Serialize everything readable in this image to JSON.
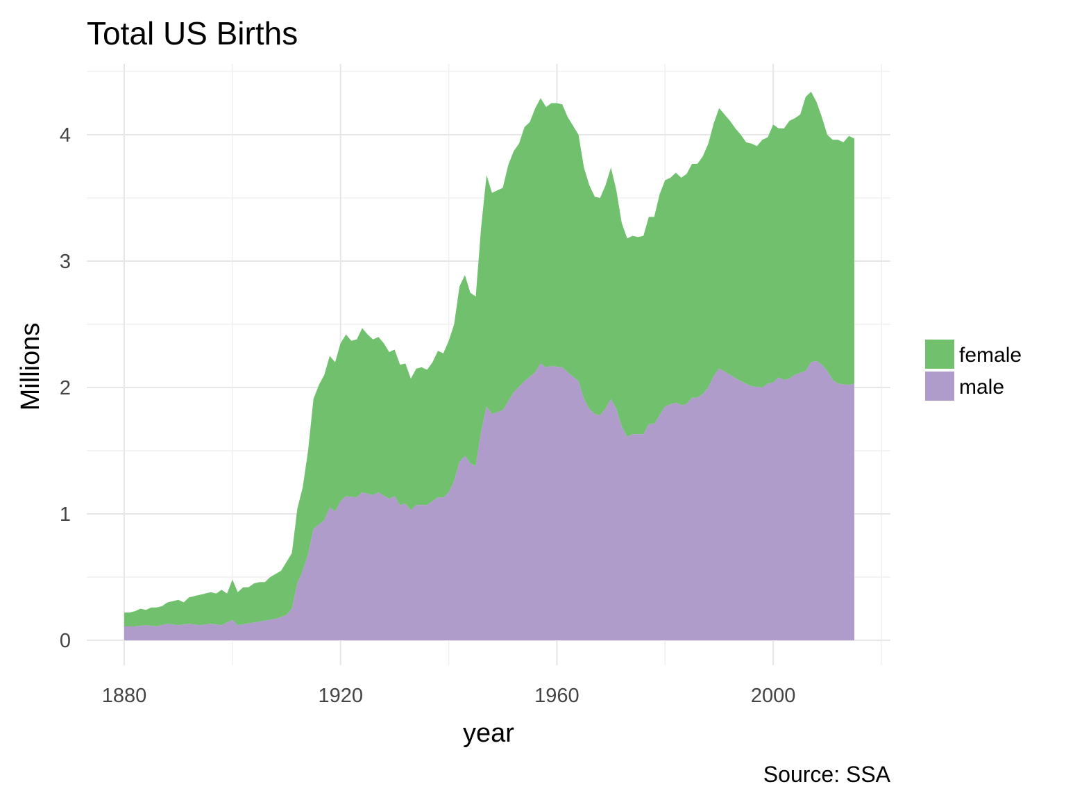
{
  "chart_data": {
    "type": "area",
    "stacked": true,
    "title": "Total US Births",
    "xlabel": "year",
    "ylabel": "Millions",
    "caption": "Source: SSA",
    "xlim": [
      1880,
      2015
    ],
    "ylim": [
      0,
      4.4
    ],
    "x_ticks": [
      1880,
      1920,
      1960,
      2000
    ],
    "y_ticks": [
      0,
      1,
      2,
      3,
      4
    ],
    "grid": true,
    "legend": "right",
    "stack_order": [
      "male",
      "female"
    ],
    "series": [
      {
        "name": "male",
        "color": "#af9ccb",
        "points": [
          [
            1880,
            0.11
          ],
          [
            1882,
            0.11
          ],
          [
            1884,
            0.12
          ],
          [
            1886,
            0.11
          ],
          [
            1888,
            0.13
          ],
          [
            1890,
            0.12
          ],
          [
            1892,
            0.13
          ],
          [
            1894,
            0.12
          ],
          [
            1896,
            0.13
          ],
          [
            1898,
            0.12
          ],
          [
            1900,
            0.16
          ],
          [
            1901,
            0.12
          ],
          [
            1904,
            0.14
          ],
          [
            1908,
            0.17
          ],
          [
            1910,
            0.2
          ],
          [
            1911,
            0.25
          ],
          [
            1912,
            0.45
          ],
          [
            1913,
            0.55
          ],
          [
            1914,
            0.68
          ],
          [
            1915,
            0.88
          ],
          [
            1917,
            0.95
          ],
          [
            1918,
            1.05
          ],
          [
            1919,
            1.02
          ],
          [
            1920,
            1.1
          ],
          [
            1921,
            1.14
          ],
          [
            1923,
            1.13
          ],
          [
            1924,
            1.17
          ],
          [
            1926,
            1.15
          ],
          [
            1927,
            1.17
          ],
          [
            1929,
            1.12
          ],
          [
            1930,
            1.14
          ],
          [
            1931,
            1.07
          ],
          [
            1932,
            1.08
          ],
          [
            1933,
            1.03
          ],
          [
            1934,
            1.07
          ],
          [
            1936,
            1.07
          ],
          [
            1938,
            1.13
          ],
          [
            1939,
            1.13
          ],
          [
            1940,
            1.17
          ],
          [
            1941,
            1.26
          ],
          [
            1942,
            1.41
          ],
          [
            1943,
            1.46
          ],
          [
            1944,
            1.4
          ],
          [
            1945,
            1.38
          ],
          [
            1946,
            1.65
          ],
          [
            1947,
            1.85
          ],
          [
            1948,
            1.79
          ],
          [
            1950,
            1.82
          ],
          [
            1952,
            1.96
          ],
          [
            1954,
            2.05
          ],
          [
            1956,
            2.12
          ],
          [
            1957,
            2.19
          ],
          [
            1958,
            2.16
          ],
          [
            1959,
            2.17
          ],
          [
            1961,
            2.16
          ],
          [
            1962,
            2.12
          ],
          [
            1964,
            2.05
          ],
          [
            1965,
            1.91
          ],
          [
            1966,
            1.83
          ],
          [
            1967,
            1.79
          ],
          [
            1968,
            1.78
          ],
          [
            1969,
            1.83
          ],
          [
            1970,
            1.91
          ],
          [
            1971,
            1.83
          ],
          [
            1972,
            1.69
          ],
          [
            1973,
            1.61
          ],
          [
            1974,
            1.63
          ],
          [
            1975,
            1.63
          ],
          [
            1976,
            1.63
          ],
          [
            1977,
            1.71
          ],
          [
            1978,
            1.71
          ],
          [
            1980,
            1.85
          ],
          [
            1982,
            1.88
          ],
          [
            1983,
            1.86
          ],
          [
            1984,
            1.87
          ],
          [
            1985,
            1.92
          ],
          [
            1986,
            1.92
          ],
          [
            1987,
            1.95
          ],
          [
            1988,
            2.0
          ],
          [
            1989,
            2.09
          ],
          [
            1990,
            2.15
          ],
          [
            1992,
            2.1
          ],
          [
            1994,
            2.05
          ],
          [
            1996,
            2.01
          ],
          [
            1998,
            2.0
          ],
          [
            1999,
            2.03
          ],
          [
            2000,
            2.04
          ],
          [
            2001,
            2.08
          ],
          [
            2002,
            2.06
          ],
          [
            2003,
            2.07
          ],
          [
            2004,
            2.1
          ],
          [
            2006,
            2.13
          ],
          [
            2007,
            2.2
          ],
          [
            2008,
            2.21
          ],
          [
            2009,
            2.18
          ],
          [
            2010,
            2.13
          ],
          [
            2011,
            2.06
          ],
          [
            2012,
            2.03
          ],
          [
            2014,
            2.02
          ],
          [
            2015,
            2.03
          ]
        ]
      },
      {
        "name": "female",
        "color": "#70c06e",
        "points": [
          [
            1880,
            0.22
          ],
          [
            1881,
            0.22
          ],
          [
            1882,
            0.23
          ],
          [
            1883,
            0.25
          ],
          [
            1884,
            0.24
          ],
          [
            1885,
            0.26
          ],
          [
            1886,
            0.26
          ],
          [
            1887,
            0.27
          ],
          [
            1888,
            0.3
          ],
          [
            1889,
            0.31
          ],
          [
            1890,
            0.32
          ],
          [
            1891,
            0.3
          ],
          [
            1892,
            0.34
          ],
          [
            1894,
            0.36
          ],
          [
            1896,
            0.38
          ],
          [
            1897,
            0.37
          ],
          [
            1898,
            0.4
          ],
          [
            1899,
            0.37
          ],
          [
            1900,
            0.48
          ],
          [
            1901,
            0.38
          ],
          [
            1902,
            0.42
          ],
          [
            1903,
            0.42
          ],
          [
            1904,
            0.45
          ],
          [
            1905,
            0.46
          ],
          [
            1906,
            0.46
          ],
          [
            1907,
            0.5
          ],
          [
            1909,
            0.55
          ],
          [
            1910,
            0.62
          ],
          [
            1911,
            0.69
          ],
          [
            1912,
            1.04
          ],
          [
            1913,
            1.21
          ],
          [
            1914,
            1.5
          ],
          [
            1915,
            1.91
          ],
          [
            1916,
            2.02
          ],
          [
            1917,
            2.1
          ],
          [
            1918,
            2.25
          ],
          [
            1919,
            2.2
          ],
          [
            1920,
            2.35
          ],
          [
            1921,
            2.42
          ],
          [
            1922,
            2.37
          ],
          [
            1923,
            2.38
          ],
          [
            1924,
            2.47
          ],
          [
            1925,
            2.42
          ],
          [
            1926,
            2.38
          ],
          [
            1927,
            2.4
          ],
          [
            1928,
            2.35
          ],
          [
            1929,
            2.28
          ],
          [
            1930,
            2.3
          ],
          [
            1931,
            2.18
          ],
          [
            1932,
            2.19
          ],
          [
            1933,
            2.07
          ],
          [
            1934,
            2.15
          ],
          [
            1935,
            2.16
          ],
          [
            1936,
            2.14
          ],
          [
            1937,
            2.2
          ],
          [
            1938,
            2.29
          ],
          [
            1939,
            2.27
          ],
          [
            1940,
            2.37
          ],
          [
            1941,
            2.5
          ],
          [
            1942,
            2.8
          ],
          [
            1943,
            2.89
          ],
          [
            1944,
            2.75
          ],
          [
            1945,
            2.72
          ],
          [
            1946,
            3.27
          ],
          [
            1947,
            3.68
          ],
          [
            1948,
            3.54
          ],
          [
            1950,
            3.58
          ],
          [
            1951,
            3.76
          ],
          [
            1952,
            3.87
          ],
          [
            1953,
            3.93
          ],
          [
            1954,
            4.06
          ],
          [
            1955,
            4.1
          ],
          [
            1956,
            4.21
          ],
          [
            1957,
            4.29
          ],
          [
            1958,
            4.22
          ],
          [
            1959,
            4.25
          ],
          [
            1960,
            4.25
          ],
          [
            1961,
            4.24
          ],
          [
            1962,
            4.14
          ],
          [
            1963,
            4.07
          ],
          [
            1964,
            4.0
          ],
          [
            1965,
            3.74
          ],
          [
            1966,
            3.6
          ],
          [
            1967,
            3.51
          ],
          [
            1968,
            3.5
          ],
          [
            1969,
            3.6
          ],
          [
            1970,
            3.74
          ],
          [
            1971,
            3.56
          ],
          [
            1972,
            3.3
          ],
          [
            1973,
            3.18
          ],
          [
            1974,
            3.2
          ],
          [
            1975,
            3.19
          ],
          [
            1976,
            3.2
          ],
          [
            1977,
            3.35
          ],
          [
            1978,
            3.35
          ],
          [
            1979,
            3.53
          ],
          [
            1980,
            3.64
          ],
          [
            1981,
            3.66
          ],
          [
            1982,
            3.7
          ],
          [
            1983,
            3.66
          ],
          [
            1984,
            3.69
          ],
          [
            1985,
            3.77
          ],
          [
            1986,
            3.77
          ],
          [
            1987,
            3.83
          ],
          [
            1988,
            3.93
          ],
          [
            1989,
            4.09
          ],
          [
            1990,
            4.21
          ],
          [
            1991,
            4.16
          ],
          [
            1992,
            4.11
          ],
          [
            1993,
            4.05
          ],
          [
            1994,
            4.0
          ],
          [
            1995,
            3.94
          ],
          [
            1996,
            3.93
          ],
          [
            1997,
            3.91
          ],
          [
            1998,
            3.96
          ],
          [
            1999,
            3.98
          ],
          [
            2000,
            4.08
          ],
          [
            2001,
            4.05
          ],
          [
            2002,
            4.05
          ],
          [
            2003,
            4.11
          ],
          [
            2004,
            4.13
          ],
          [
            2005,
            4.16
          ],
          [
            2006,
            4.3
          ],
          [
            2007,
            4.34
          ],
          [
            2008,
            4.26
          ],
          [
            2009,
            4.14
          ],
          [
            2010,
            4.0
          ],
          [
            2011,
            3.96
          ],
          [
            2012,
            3.96
          ],
          [
            2013,
            3.94
          ],
          [
            2014,
            3.99
          ],
          [
            2015,
            3.97
          ]
        ]
      }
    ],
    "legend_order": [
      "female",
      "male"
    ]
  }
}
